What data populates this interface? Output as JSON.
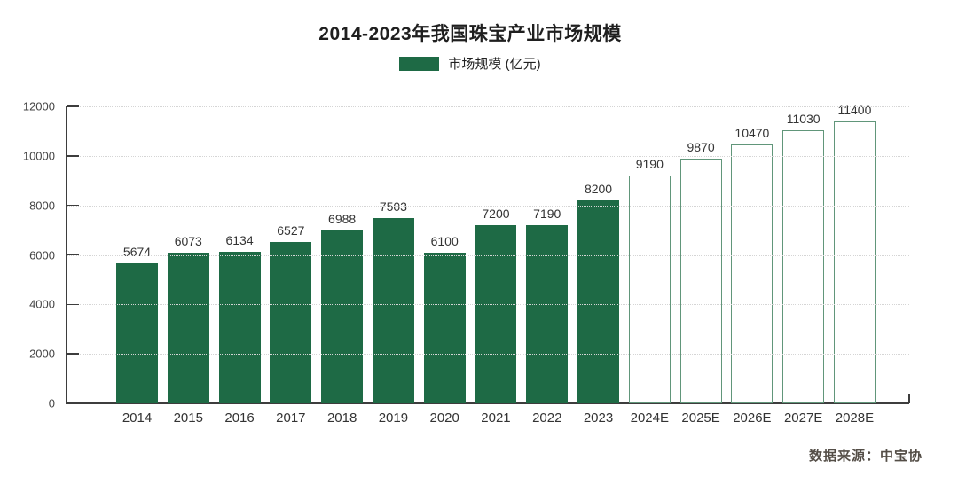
{
  "chart_data": {
    "type": "bar",
    "title": "2014-2023年我国珠宝产业市场规模",
    "legend": {
      "label": "市场规模 (亿元)",
      "swatch_color": "#1e6a45",
      "position": "top-center"
    },
    "categories": [
      "2014",
      "2015",
      "2016",
      "2017",
      "2018",
      "2019",
      "2020",
      "2021",
      "2022",
      "2023",
      "2024E",
      "2025E",
      "2026E",
      "2027E",
      "2028E"
    ],
    "values": [
      5674,
      6073,
      6134,
      6527,
      6988,
      7503,
      6100,
      7200,
      7190,
      8200,
      9190,
      9870,
      10470,
      11030,
      11400
    ],
    "bar_styles": [
      "solid",
      "solid",
      "solid",
      "solid",
      "solid",
      "solid",
      "solid",
      "solid",
      "solid",
      "solid",
      "outline",
      "outline",
      "outline",
      "outline",
      "outline"
    ],
    "ylim": [
      0,
      12000
    ],
    "yticks": [
      0,
      2000,
      4000,
      6000,
      8000,
      10000,
      12000
    ],
    "grid": "horizontal-dotted",
    "source_note": "数据来源：中宝协",
    "colors": {
      "bar_solid": "#1e6a45",
      "bar_outline_border": "#61967a",
      "axis": "#3d3d3d",
      "gridline": "#d5d5d5",
      "value_label": "#333333",
      "source_text": "#544e47"
    }
  }
}
